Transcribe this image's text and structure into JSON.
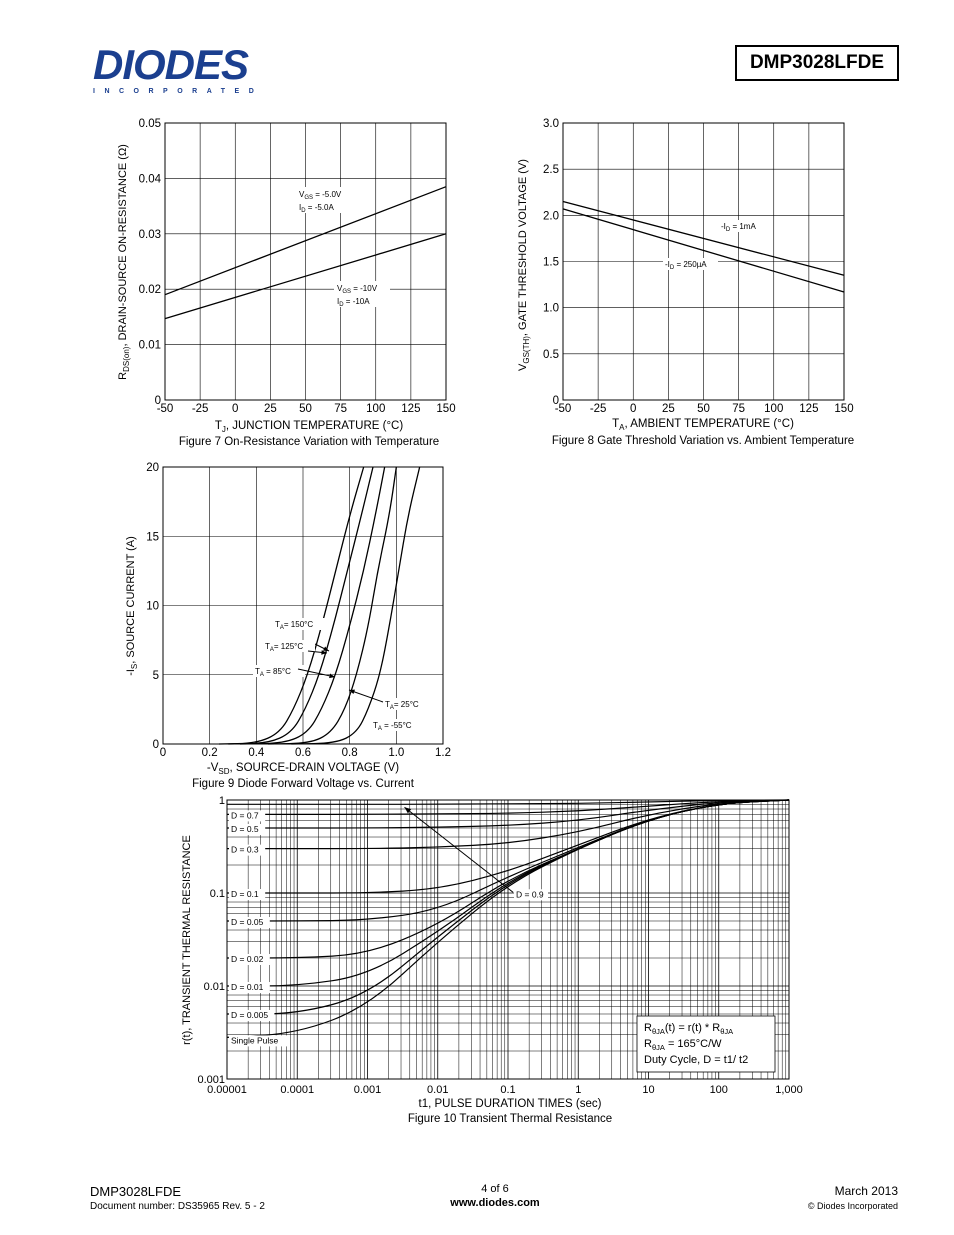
{
  "header": {
    "logo_text": "DIODES",
    "logo_sub": "INCORPORATED",
    "part_number": "DMP3028LFDE"
  },
  "charts": {
    "fig7": {
      "caption": "Figure 7 On-Resistance Variation with Temperature",
      "ylabel_main": "R",
      "ylabel_sub": "DS(on)",
      "ylabel_rest": ", DRAIN-SOURCE ON-RESISTANCE (Ω)",
      "xlabel_main": "T",
      "xlabel_sub": "J",
      "xlabel_rest": ", JUNCTION TEMPERATURE (°C)",
      "yticks": [
        "0",
        "0.01",
        "0.02",
        "0.03",
        "0.04",
        "0.05"
      ],
      "xticks": [
        "-50",
        "-25",
        "0",
        "25",
        "50",
        "75",
        "100",
        "125",
        "150"
      ],
      "ann1_line1": "V",
      "ann1_line1_sub": "GS",
      "ann1_line1_rest": " = -5.0V",
      "ann1_line2": "I",
      "ann1_line2_sub": "D",
      "ann1_line2_rest": " = -5.0A",
      "ann2_line1": "V",
      "ann2_line1_sub": "GS",
      "ann2_line1_rest": " = -10V",
      "ann2_line2": "I",
      "ann2_line2_sub": "D",
      "ann2_line2_rest": " = -10A"
    },
    "fig8": {
      "caption": "Figure 8 Gate Threshold Variation vs. Ambient Temperature",
      "ylabel_main": "V",
      "ylabel_sub": "GS(TH)",
      "ylabel_rest": ", GATE THRESHOLD VOLTAGE (V)",
      "xlabel_main": "T",
      "xlabel_sub": "A",
      "xlabel_rest": ", AMBIENT TEMPERATURE (°C)",
      "yticks": [
        "0",
        "0.5",
        "1.0",
        "1.5",
        "2.0",
        "2.5",
        "3.0"
      ],
      "xticks": [
        "-50",
        "-25",
        "0",
        "25",
        "50",
        "75",
        "100",
        "125",
        "150"
      ],
      "ann1": "-I",
      "ann1_sub": "D",
      "ann1_rest": " = 1mA",
      "ann2": "-I",
      "ann2_sub": "D",
      "ann2_rest": " = 250µA"
    },
    "fig9": {
      "caption": "Figure 9 Diode Forward Voltage vs. Current",
      "ylabel_main": "-I",
      "ylabel_sub": "S",
      "ylabel_rest": ", SOURCE CURRENT (A)",
      "xlabel_main": "-V",
      "xlabel_sub": "SD",
      "xlabel_rest": ", SOURCE-DRAIN VOLTAGE (V)",
      "yticks": [
        "0",
        "5",
        "10",
        "15",
        "20"
      ],
      "xticks": [
        "0",
        "0.2",
        "0.4",
        "0.6",
        "0.8",
        "1.0",
        "1.2"
      ],
      "labels": [
        {
          "main": "T",
          "sub": "A",
          "rest": "= 150°C"
        },
        {
          "main": "T",
          "sub": "A",
          "rest": "= 125°C"
        },
        {
          "main": "T",
          "sub": "A",
          "rest": " = 85°C"
        },
        {
          "main": "T",
          "sub": "A",
          "rest": "= 25°C"
        },
        {
          "main": "T",
          "sub": "A",
          "rest": " = -55°C"
        }
      ]
    },
    "fig10": {
      "caption": "Figure 10  Transient Thermal Resistance",
      "ylabel": "r(t), TRANSIENT THERMAL RESISTANCE",
      "xlabel": "t1, PULSE DURATION TIMES (sec)",
      "yticks": [
        "0.001",
        "0.01",
        "0.1",
        "1"
      ],
      "xticks": [
        "0.00001",
        "0.0001",
        "0.001",
        "0.01",
        "0.1",
        "1",
        "10",
        "100",
        "1,000"
      ],
      "duty_labels": [
        "D = 0.7",
        "D = 0.5",
        "D = 0.3",
        "D = 0.1",
        "D = 0.05",
        "D = 0.02",
        "D = 0.01",
        "D = 0.005",
        "Single Pulse"
      ],
      "d09_label": "D = 0.9",
      "info_line1_a": "R",
      "info_line1_sub1": "θJA",
      "info_line1_b": "(t) = r(t) * R",
      "info_line1_sub2": "θJA",
      "info_line2_a": "R",
      "info_line2_sub": "θJA",
      "info_line2_b": " = 165°C/W",
      "info_line3": "Duty Cycle, D = t1/ t2"
    }
  },
  "chart_data": [
    {
      "type": "line",
      "title": "Figure 7 On-Resistance Variation with Temperature",
      "xlabel": "TJ, JUNCTION TEMPERATURE (°C)",
      "ylabel": "RDS(on), DRAIN-SOURCE ON-RESISTANCE (Ω)",
      "xlim": [
        -50,
        150
      ],
      "ylim": [
        0,
        0.05
      ],
      "x": [
        -50,
        150
      ],
      "series": [
        {
          "name": "VGS = -5.0V, ID = -5.0A",
          "values": [
            0.019,
            0.0385
          ]
        },
        {
          "name": "VGS = -10V, ID = -10A",
          "values": [
            0.0147,
            0.03
          ]
        }
      ],
      "grid": true
    },
    {
      "type": "line",
      "title": "Figure 8 Gate Threshold Variation vs. Ambient Temperature",
      "xlabel": "TA, AMBIENT TEMPERATURE (°C)",
      "ylabel": "VGS(TH), GATE THRESHOLD VOLTAGE (V)",
      "xlim": [
        -50,
        150
      ],
      "ylim": [
        0,
        3.0
      ],
      "x": [
        -50,
        150
      ],
      "series": [
        {
          "name": "-ID = 1mA",
          "values": [
            2.15,
            1.35
          ]
        },
        {
          "name": "-ID = 250µA",
          "values": [
            2.07,
            1.17
          ]
        }
      ],
      "grid": true
    },
    {
      "type": "line",
      "title": "Figure 9 Diode Forward Voltage vs. Current",
      "xlabel": "-VSD, SOURCE-DRAIN VOLTAGE (V)",
      "ylabel": "-IS, SOURCE CURRENT (A)",
      "xlim": [
        0,
        1.2
      ],
      "ylim": [
        0,
        20
      ],
      "series": [
        {
          "name": "TA = 150°C",
          "x": [
            0.24,
            0.4,
            0.5,
            0.56,
            0.62,
            0.68,
            0.74,
            0.8,
            0.86
          ],
          "values": [
            0,
            0.05,
            0.8,
            2.5,
            5,
            8.5,
            12.5,
            16.5,
            20
          ]
        },
        {
          "name": "TA = 125°C",
          "x": [
            0.28,
            0.45,
            0.55,
            0.61,
            0.67,
            0.73,
            0.79,
            0.85,
            0.9
          ],
          "values": [
            0,
            0.05,
            0.8,
            2.5,
            5,
            8.5,
            12.5,
            16.5,
            20
          ]
        },
        {
          "name": "TA = 85°C",
          "x": [
            0.33,
            0.52,
            0.62,
            0.68,
            0.74,
            0.8,
            0.86,
            0.91,
            0.95
          ],
          "values": [
            0,
            0.05,
            0.8,
            2.5,
            5,
            8.5,
            12.5,
            16.5,
            20
          ]
        },
        {
          "name": "TA = 25°C",
          "x": [
            0.45,
            0.63,
            0.72,
            0.78,
            0.83,
            0.88,
            0.92,
            0.97,
            1.0
          ],
          "values": [
            0,
            0.05,
            0.8,
            2.5,
            5,
            8.5,
            12.5,
            16.5,
            20
          ]
        },
        {
          "name": "TA = -55°C",
          "x": [
            0.55,
            0.74,
            0.83,
            0.88,
            0.93,
            0.97,
            1.01,
            1.05,
            1.1
          ],
          "values": [
            0,
            0.05,
            0.8,
            2.5,
            5,
            8.5,
            12.5,
            16.5,
            20
          ]
        }
      ],
      "grid": true
    },
    {
      "type": "line",
      "title": "Figure 10  Transient Thermal Resistance",
      "xlabel": "t1, PULSE DURATION TIMES (sec)",
      "ylabel": "r(t), TRANSIENT THERMAL RESISTANCE",
      "xscale": "log",
      "yscale": "log",
      "xlim": [
        1e-05,
        1000
      ],
      "ylim": [
        0.001,
        1
      ],
      "series": [
        {
          "name": "D = 0.9",
          "x": [
            1e-05,
            0.0001,
            0.001,
            0.01,
            0.1,
            1,
            10,
            100,
            1000
          ],
          "values": [
            0.9,
            0.9,
            0.9,
            0.9,
            0.91,
            0.92,
            0.95,
            0.99,
            1.0
          ]
        },
        {
          "name": "D = 0.7",
          "x": [
            1e-05,
            0.0001,
            0.001,
            0.01,
            0.1,
            1,
            10,
            100,
            1000
          ],
          "values": [
            0.7,
            0.7,
            0.7,
            0.71,
            0.72,
            0.76,
            0.86,
            0.97,
            1.0
          ]
        },
        {
          "name": "D = 0.5",
          "x": [
            1e-05,
            0.0001,
            0.001,
            0.01,
            0.1,
            1,
            10,
            100,
            1000
          ],
          "values": [
            0.5,
            0.5,
            0.5,
            0.51,
            0.53,
            0.6,
            0.78,
            0.95,
            1.0
          ]
        },
        {
          "name": "D = 0.3",
          "x": [
            1e-05,
            0.0001,
            0.001,
            0.01,
            0.1,
            1,
            10,
            100,
            1000
          ],
          "values": [
            0.3,
            0.3,
            0.3,
            0.31,
            0.34,
            0.45,
            0.7,
            0.93,
            1.0
          ]
        },
        {
          "name": "D = 0.1",
          "x": [
            1e-05,
            0.0001,
            0.001,
            0.01,
            0.1,
            1,
            10,
            100,
            1000
          ],
          "values": [
            0.1,
            0.1,
            0.1,
            0.11,
            0.17,
            0.33,
            0.63,
            0.92,
            1.0
          ]
        },
        {
          "name": "D = 0.05",
          "x": [
            1e-05,
            0.0001,
            0.001,
            0.01,
            0.1,
            1,
            10,
            100,
            1000
          ],
          "values": [
            0.05,
            0.05,
            0.051,
            0.065,
            0.15,
            0.31,
            0.62,
            0.92,
            1.0
          ]
        },
        {
          "name": "D = 0.02",
          "x": [
            1e-05,
            0.0001,
            0.001,
            0.01,
            0.1,
            1,
            10,
            100,
            1000
          ],
          "values": [
            0.02,
            0.02,
            0.022,
            0.045,
            0.14,
            0.3,
            0.62,
            0.92,
            1.0
          ]
        },
        {
          "name": "D = 0.01",
          "x": [
            1e-05,
            0.0001,
            0.001,
            0.01,
            0.1,
            1,
            10,
            100,
            1000
          ],
          "values": [
            0.01,
            0.01,
            0.013,
            0.038,
            0.135,
            0.3,
            0.62,
            0.92,
            1.0
          ]
        },
        {
          "name": "D = 0.005",
          "x": [
            1e-05,
            0.0001,
            0.001,
            0.01,
            0.1,
            1,
            10,
            100,
            1000
          ],
          "values": [
            0.005,
            0.005,
            0.008,
            0.034,
            0.13,
            0.3,
            0.62,
            0.92,
            1.0
          ]
        },
        {
          "name": "Single Pulse",
          "x": [
            1e-05,
            0.0001,
            0.001,
            0.01,
            0.1,
            1,
            10,
            100,
            1000
          ],
          "values": [
            0.0028,
            0.0031,
            0.006,
            0.03,
            0.125,
            0.3,
            0.62,
            0.92,
            1.0
          ]
        }
      ],
      "grid": true
    }
  ],
  "footer": {
    "part": "DMP3028LFDE",
    "docnum": "Document number: DS35965  Rev. 5 - 2",
    "page": "4 of 6",
    "url": "www.diodes.com",
    "date": "March 2013",
    "copyright": "© Diodes Incorporated"
  }
}
